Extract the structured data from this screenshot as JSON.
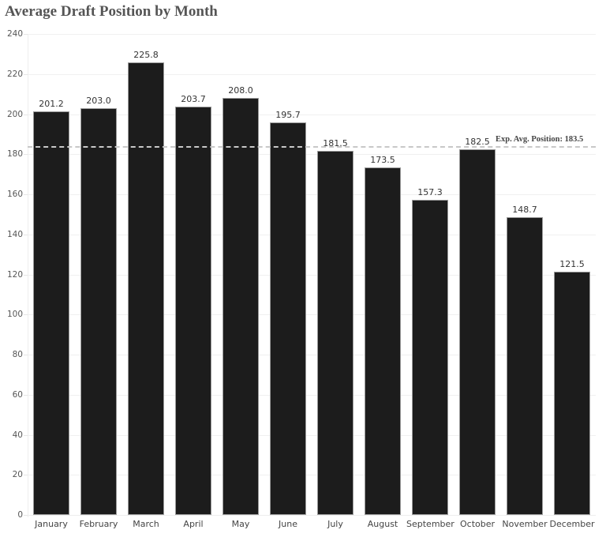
{
  "chart_data": {
    "type": "bar",
    "title": "Average Draft Position by Month",
    "xlabel": "",
    "ylabel": "",
    "categories": [
      "January",
      "February",
      "March",
      "April",
      "May",
      "June",
      "July",
      "August",
      "September",
      "October",
      "November",
      "December"
    ],
    "values": [
      201.2,
      203.0,
      225.8,
      203.7,
      208.0,
      195.7,
      181.5,
      173.5,
      157.3,
      182.5,
      148.7,
      121.5
    ],
    "value_labels": [
      "201.2",
      "203.0",
      "225.8",
      "203.7",
      "208.0",
      "195.7",
      "181.5",
      "173.5",
      "157.3",
      "182.5",
      "148.7",
      "121.5"
    ],
    "ylim": [
      0,
      240
    ],
    "yticks": [
      0,
      20,
      40,
      60,
      80,
      100,
      120,
      140,
      160,
      180,
      200,
      220,
      240
    ],
    "grid": true,
    "legend": null,
    "bar_color": "#1c1c1c",
    "reference_line": {
      "value": 183.5,
      "label": "Exp. Avg. Position: 183.5",
      "style": "dashed",
      "color": "#c8c8c8"
    }
  }
}
